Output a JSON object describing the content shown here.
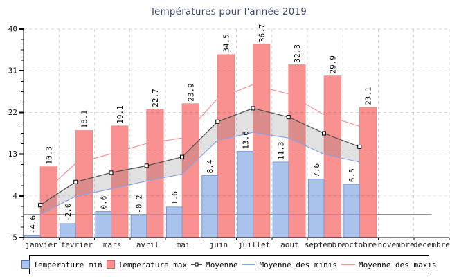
{
  "title": "Températures pour l'année 2019",
  "chart_data": {
    "type": "bar",
    "title": "Températures pour l'année 2019",
    "categories": [
      "janvier",
      "fevrier",
      "mars",
      "avril",
      "mai",
      "juin",
      "juillet",
      "aout",
      "septembre",
      "octobre",
      "novembre",
      "decembre"
    ],
    "series": [
      {
        "name": "Temperature min",
        "type": "bar",
        "color": "#a9c3ec",
        "values": [
          -4.6,
          -2.0,
          0.6,
          -0.2,
          1.6,
          8.4,
          13.6,
          11.3,
          7.6,
          6.5,
          null,
          null
        ]
      },
      {
        "name": "Temperature max",
        "type": "bar",
        "color": "#f8918f",
        "values": [
          10.3,
          18.1,
          19.1,
          22.7,
          23.9,
          34.5,
          36.7,
          32.3,
          29.9,
          23.1,
          null,
          null
        ]
      },
      {
        "name": "Moyenne",
        "type": "line",
        "marker": "square",
        "color": "#4d4d4d",
        "values": [
          2.0,
          7.0,
          9.0,
          10.5,
          12.4,
          20.0,
          22.9,
          21.0,
          17.5,
          14.6,
          null,
          null
        ]
      },
      {
        "name": "Moyenne des minis",
        "type": "line",
        "color": "#89a4e6",
        "values": [
          0.0,
          3.9,
          5.5,
          7.2,
          8.7,
          16.0,
          17.7,
          16.5,
          13.0,
          11.3,
          null,
          null
        ]
      },
      {
        "name": "Moyenne des maxis",
        "type": "line",
        "color": "#f79190",
        "values": [
          4.0,
          11.0,
          13.1,
          15.3,
          16.5,
          25.0,
          28.0,
          26.0,
          21.5,
          19.0,
          null,
          null
        ]
      }
    ],
    "ylim": [
      -5,
      40
    ],
    "yticks": [
      40,
      31,
      22,
      13,
      4,
      -5
    ],
    "y_minor_tick_step": 2.25,
    "grid": true,
    "zero_line": true,
    "band_between": [
      "Moyenne",
      "Moyenne des minis"
    ],
    "legend_position": "bottom",
    "bar_label_rotation": -90
  },
  "colors": {
    "bar_min_border": "#7b99d8",
    "bar_max_border": "#ee7f7d",
    "legend_max_border": "#e0605e",
    "legend_min_border": "#4a6bc8",
    "band": "rgba(120,120,120,0.22)",
    "grid": "rgba(0,0,0,0.15)",
    "zero_line": "#999999",
    "axis": "#000000",
    "title": "#3c4a6e",
    "text": "#111111",
    "month_label": "#222222"
  }
}
